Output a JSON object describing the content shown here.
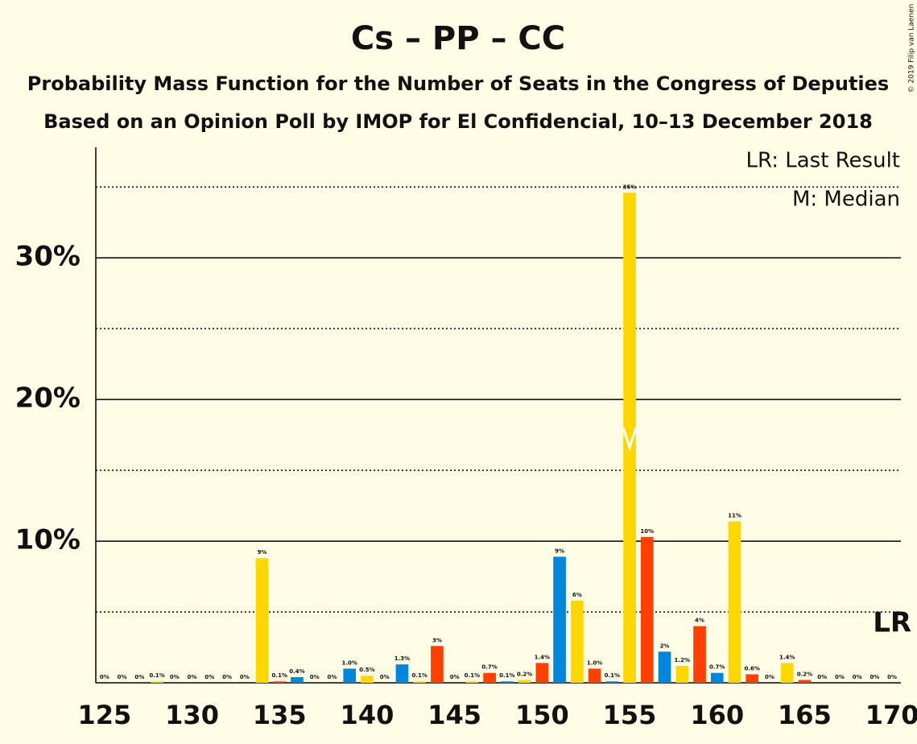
{
  "chart_data": {
    "type": "bar",
    "title": "Cs – PP – CC",
    "subtitle": "Probability Mass Function for the Number of Seats in the Congress of Deputies",
    "subtitle2": "Based on an Opinion Poll by IMOP for El Confidencial, 10–13 December 2018",
    "copyright": "© 2019 Filip van Laenen",
    "legend": [
      "LR: Last Result",
      "M: Median"
    ],
    "categories": [
      125,
      126,
      127,
      128,
      129,
      130,
      131,
      132,
      133,
      134,
      135,
      136,
      137,
      138,
      139,
      140,
      141,
      142,
      143,
      144,
      145,
      146,
      147,
      148,
      149,
      150,
      151,
      152,
      153,
      154,
      155,
      156,
      157,
      158,
      159,
      160,
      161,
      162,
      163,
      164,
      165,
      166,
      167,
      168,
      169,
      170
    ],
    "values": [
      0,
      0,
      0,
      0.1,
      0,
      0,
      0,
      0,
      0,
      8.8,
      0.1,
      0.4,
      0,
      0,
      1.0,
      0.5,
      0,
      1.3,
      0.1,
      2.6,
      0,
      0.1,
      0.7,
      0.1,
      0.2,
      1.4,
      8.9,
      5.8,
      1.0,
      0.1,
      34.6,
      10.3,
      2.2,
      1.2,
      4.0,
      0.7,
      11.4,
      0.6,
      0,
      1.4,
      0.2,
      0,
      0,
      0,
      0,
      0
    ],
    "value_labels": [
      "0%",
      "0%",
      "0%",
      "0.1%",
      "0%",
      "0%",
      "0%",
      "0%",
      "0%",
      "9%",
      "0.1%",
      "0.4%",
      "0%",
      "0%",
      "1.0%",
      "0.5%",
      "0%",
      "1.3%",
      "0.1%",
      "3%",
      "0%",
      "0.1%",
      "0.7%",
      "0.1%",
      "0.2%",
      "1.4%",
      "9%",
      "6%",
      "1.0%",
      "0.1%",
      "35%",
      "10%",
      "2%",
      "1.2%",
      "4%",
      "0.7%",
      "11%",
      "0.6%",
      "0%",
      "1.4%",
      "0.2%",
      "0%",
      "0%",
      "0%",
      "0%",
      "0%"
    ],
    "colors": [
      "#FF4000",
      "#0087DC",
      "#FFD700"
    ],
    "xlim": [
      124.5,
      170.5
    ],
    "xticks": [
      125,
      130,
      135,
      140,
      145,
      150,
      155,
      160,
      165,
      170
    ],
    "ylim": [
      0,
      37.8
    ],
    "yticks": [
      {
        "value": 10,
        "label": "10%"
      },
      {
        "value": 20,
        "label": "20%"
      },
      {
        "value": 30,
        "label": "30%"
      }
    ],
    "minor_gridlines": [
      5,
      15,
      25,
      35
    ],
    "median": 155,
    "last_result": 170,
    "last_result_label": "LR"
  }
}
